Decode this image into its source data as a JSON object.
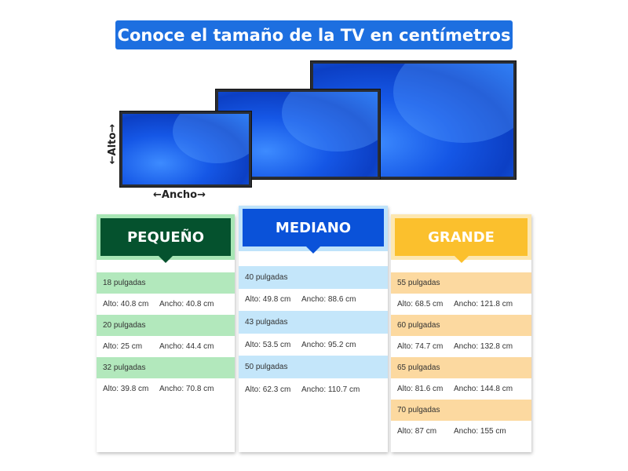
{
  "title": "Conoce el tamaño de la TV en centímetros",
  "labels": {
    "alto": "←Alto→",
    "ancho": "←Ancho→"
  },
  "colors": {
    "title": "#1d6fe0",
    "pequeno": "#05522e",
    "mediano": "#0a52d9",
    "grande": "#fbc02d"
  },
  "categories": [
    {
      "name": "PEQUEÑO",
      "sizes": [
        {
          "size": "18 pulgadas",
          "alto": "Alto: 40.8 cm",
          "ancho": "Ancho: 40.8 cm"
        },
        {
          "size": "20 pulgadas",
          "alto": "Alto: 25 cm",
          "ancho": "Ancho: 44.4 cm"
        },
        {
          "size": "32 pulgadas",
          "alto": "Alto: 39.8 cm",
          "ancho": "Ancho: 70.8 cm"
        }
      ]
    },
    {
      "name": "MEDIANO",
      "sizes": [
        {
          "size": "40 pulgadas",
          "alto": "Alto: 49.8 cm",
          "ancho": "Ancho: 88.6 cm"
        },
        {
          "size": "43 pulgadas",
          "alto": "Alto: 53.5 cm",
          "ancho": "Ancho: 95.2 cm"
        },
        {
          "size": "50 pulgadas",
          "alto": "Alto: 62.3 cm",
          "ancho": "Ancho: 110.7 cm"
        }
      ]
    },
    {
      "name": "GRANDE",
      "sizes": [
        {
          "size": "55 pulgadas",
          "alto": "Alto: 68.5 cm",
          "ancho": "Ancho: 121.8 cm"
        },
        {
          "size": "60 pulgadas",
          "alto": "Alto: 74.7 cm",
          "ancho": "Ancho: 132.8 cm"
        },
        {
          "size": "65 pulgadas",
          "alto": "Alto: 81.6 cm",
          "ancho": "Ancho: 144.8 cm"
        },
        {
          "size": "70 pulgadas",
          "alto": "Alto: 87 cm",
          "ancho": "Ancho: 155 cm"
        }
      ]
    }
  ]
}
